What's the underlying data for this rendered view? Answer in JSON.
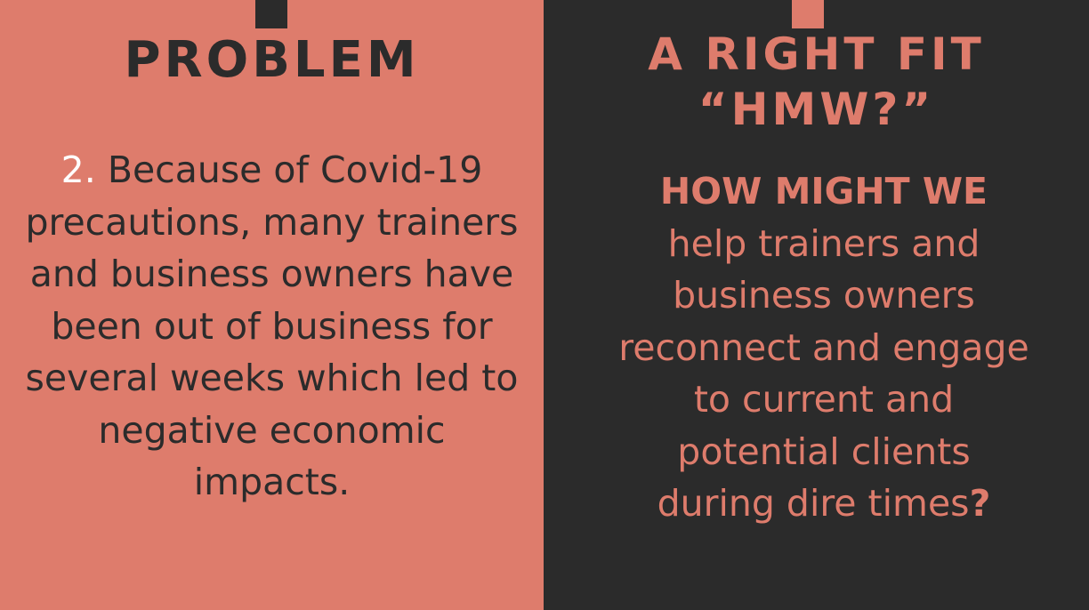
{
  "left": {
    "title": "PROBLEM",
    "number": "2.",
    "text": "Because of Covid-19 precautions, many trainers and business owners have been out of business for several weeks which led to negative economic impacts."
  },
  "right": {
    "title_line1": "A RIGHT FIT",
    "title_line2": "“HMW?”",
    "question_head": "HOW MIGHT WE",
    "question_text": "help trainers and business owners reconnect and engage to current and potential clients during dire times",
    "question_mark": "?"
  },
  "colors": {
    "salmon": "#de7c6c",
    "charcoal": "#2b2b2b",
    "white": "#ffffff"
  }
}
